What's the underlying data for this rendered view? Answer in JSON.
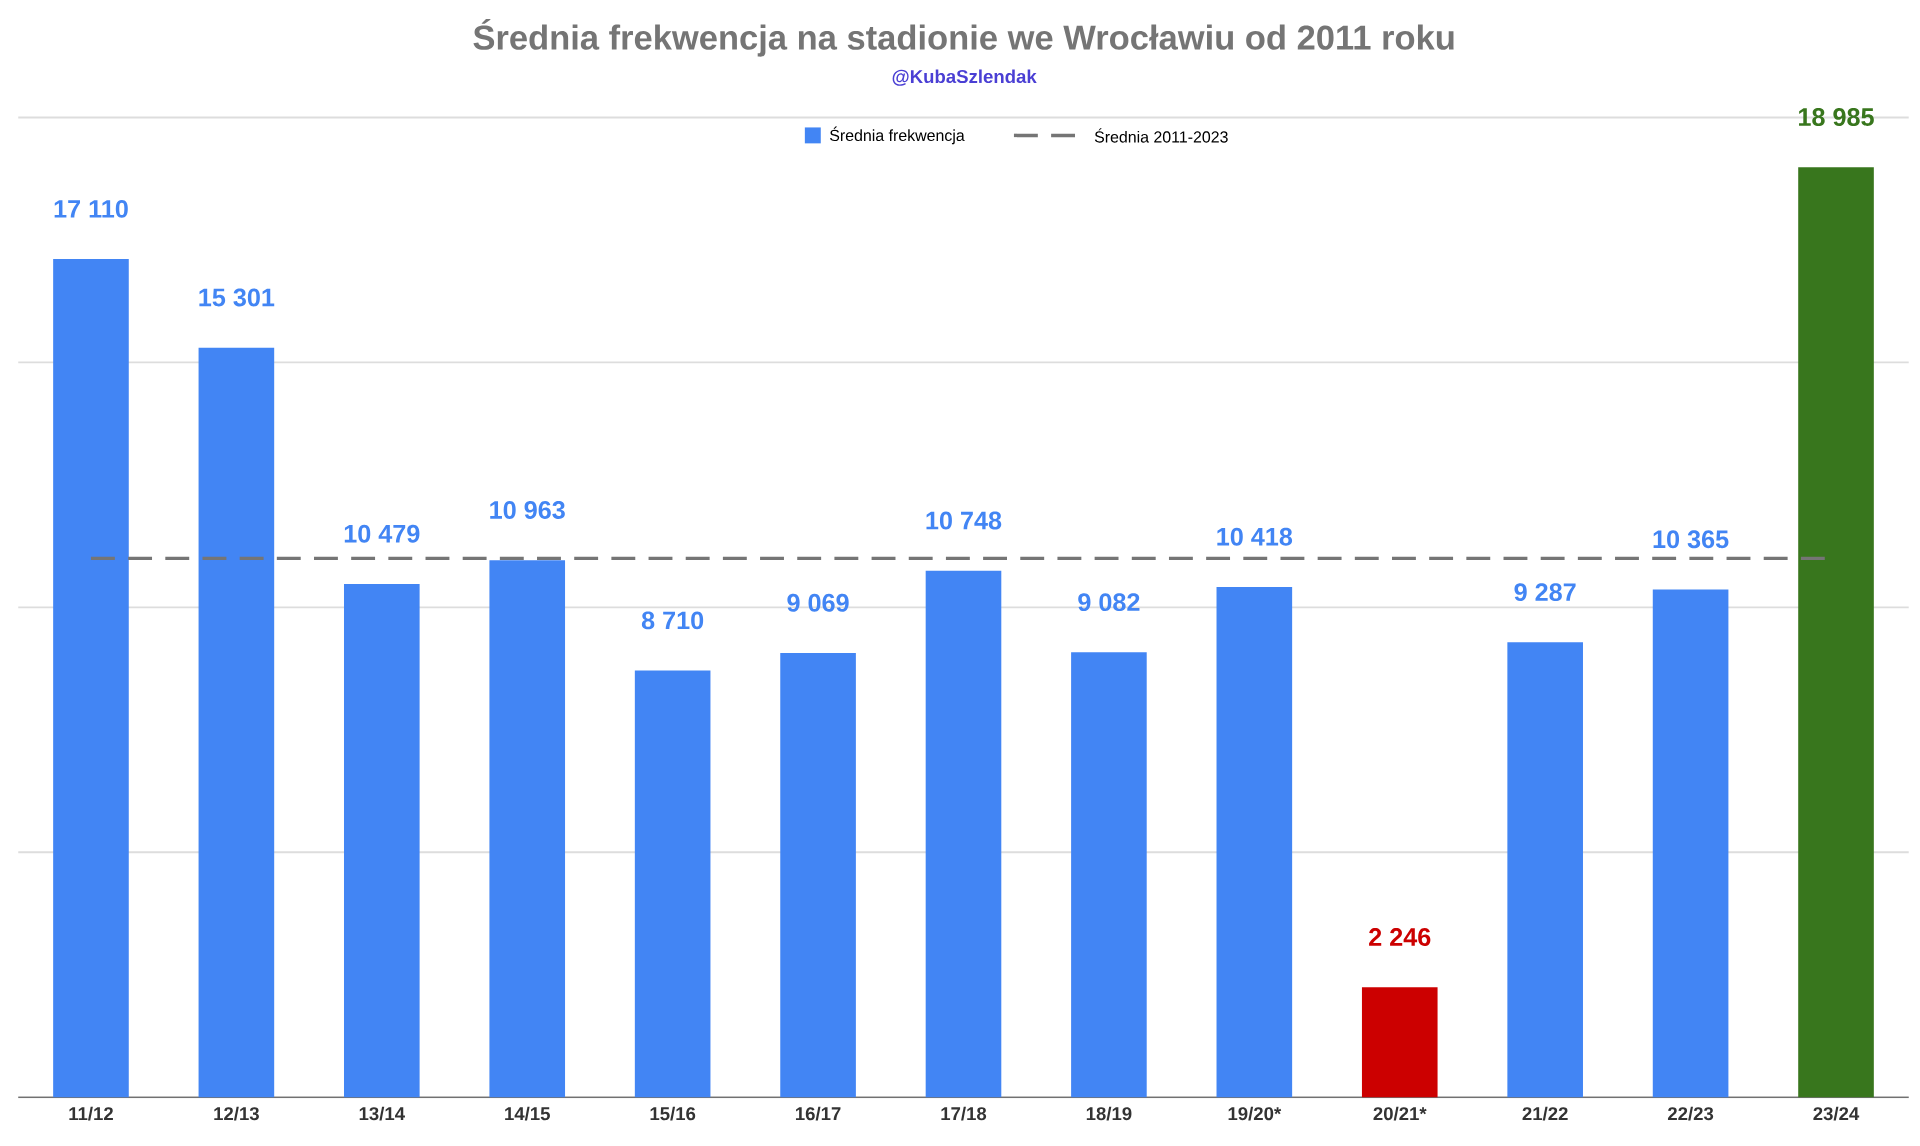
{
  "chart_data": {
    "type": "bar",
    "title": "Średnia frekwencja na stadionie we Wrocławiu od 2011 roku",
    "subtitle": "@KubaSzlendak",
    "categories": [
      "11/12",
      "12/13",
      "13/14",
      "14/15",
      "15/16",
      "16/17",
      "17/18",
      "18/19",
      "19/20*",
      "20/21*",
      "21/22",
      "22/23",
      "23/24"
    ],
    "series": [
      {
        "name": "Średnia frekwencja",
        "color": "#4285f4",
        "colors": [
          "#4285f4",
          "#4285f4",
          "#4285f4",
          "#4285f4",
          "#4285f4",
          "#4285f4",
          "#4285f4",
          "#4285f4",
          "#4285f4",
          "#cc0000",
          "#4285f4",
          "#4285f4",
          "#38761d"
        ],
        "values": [
          17110,
          15301,
          10479,
          10963,
          8710,
          9069,
          10748,
          9082,
          10418,
          2246,
          9287,
          10365,
          18985
        ],
        "value_labels": [
          "17 110",
          "15 301",
          "10 479",
          "10 963",
          "8 710",
          "9 069",
          "10 748",
          "9 082",
          "10 418",
          "2 246",
          "9 287",
          "10 365",
          "18 985"
        ]
      }
    ],
    "ref_lines": [
      {
        "axis": "y",
        "value": 11000,
        "label": "Średnia 2011-2023",
        "color": "#757575",
        "line_style": "dashed"
      }
    ],
    "ylim": [
      0,
      20000
    ],
    "yticks": [
      {
        "value": 0,
        "label": null
      },
      {
        "value": 5000,
        "label": null
      },
      {
        "value": 10000,
        "label": null
      },
      {
        "value": 15000,
        "label": null
      },
      {
        "value": 20000,
        "label": null
      }
    ],
    "tick_labels": "x",
    "grid": "y",
    "legend": "top"
  }
}
